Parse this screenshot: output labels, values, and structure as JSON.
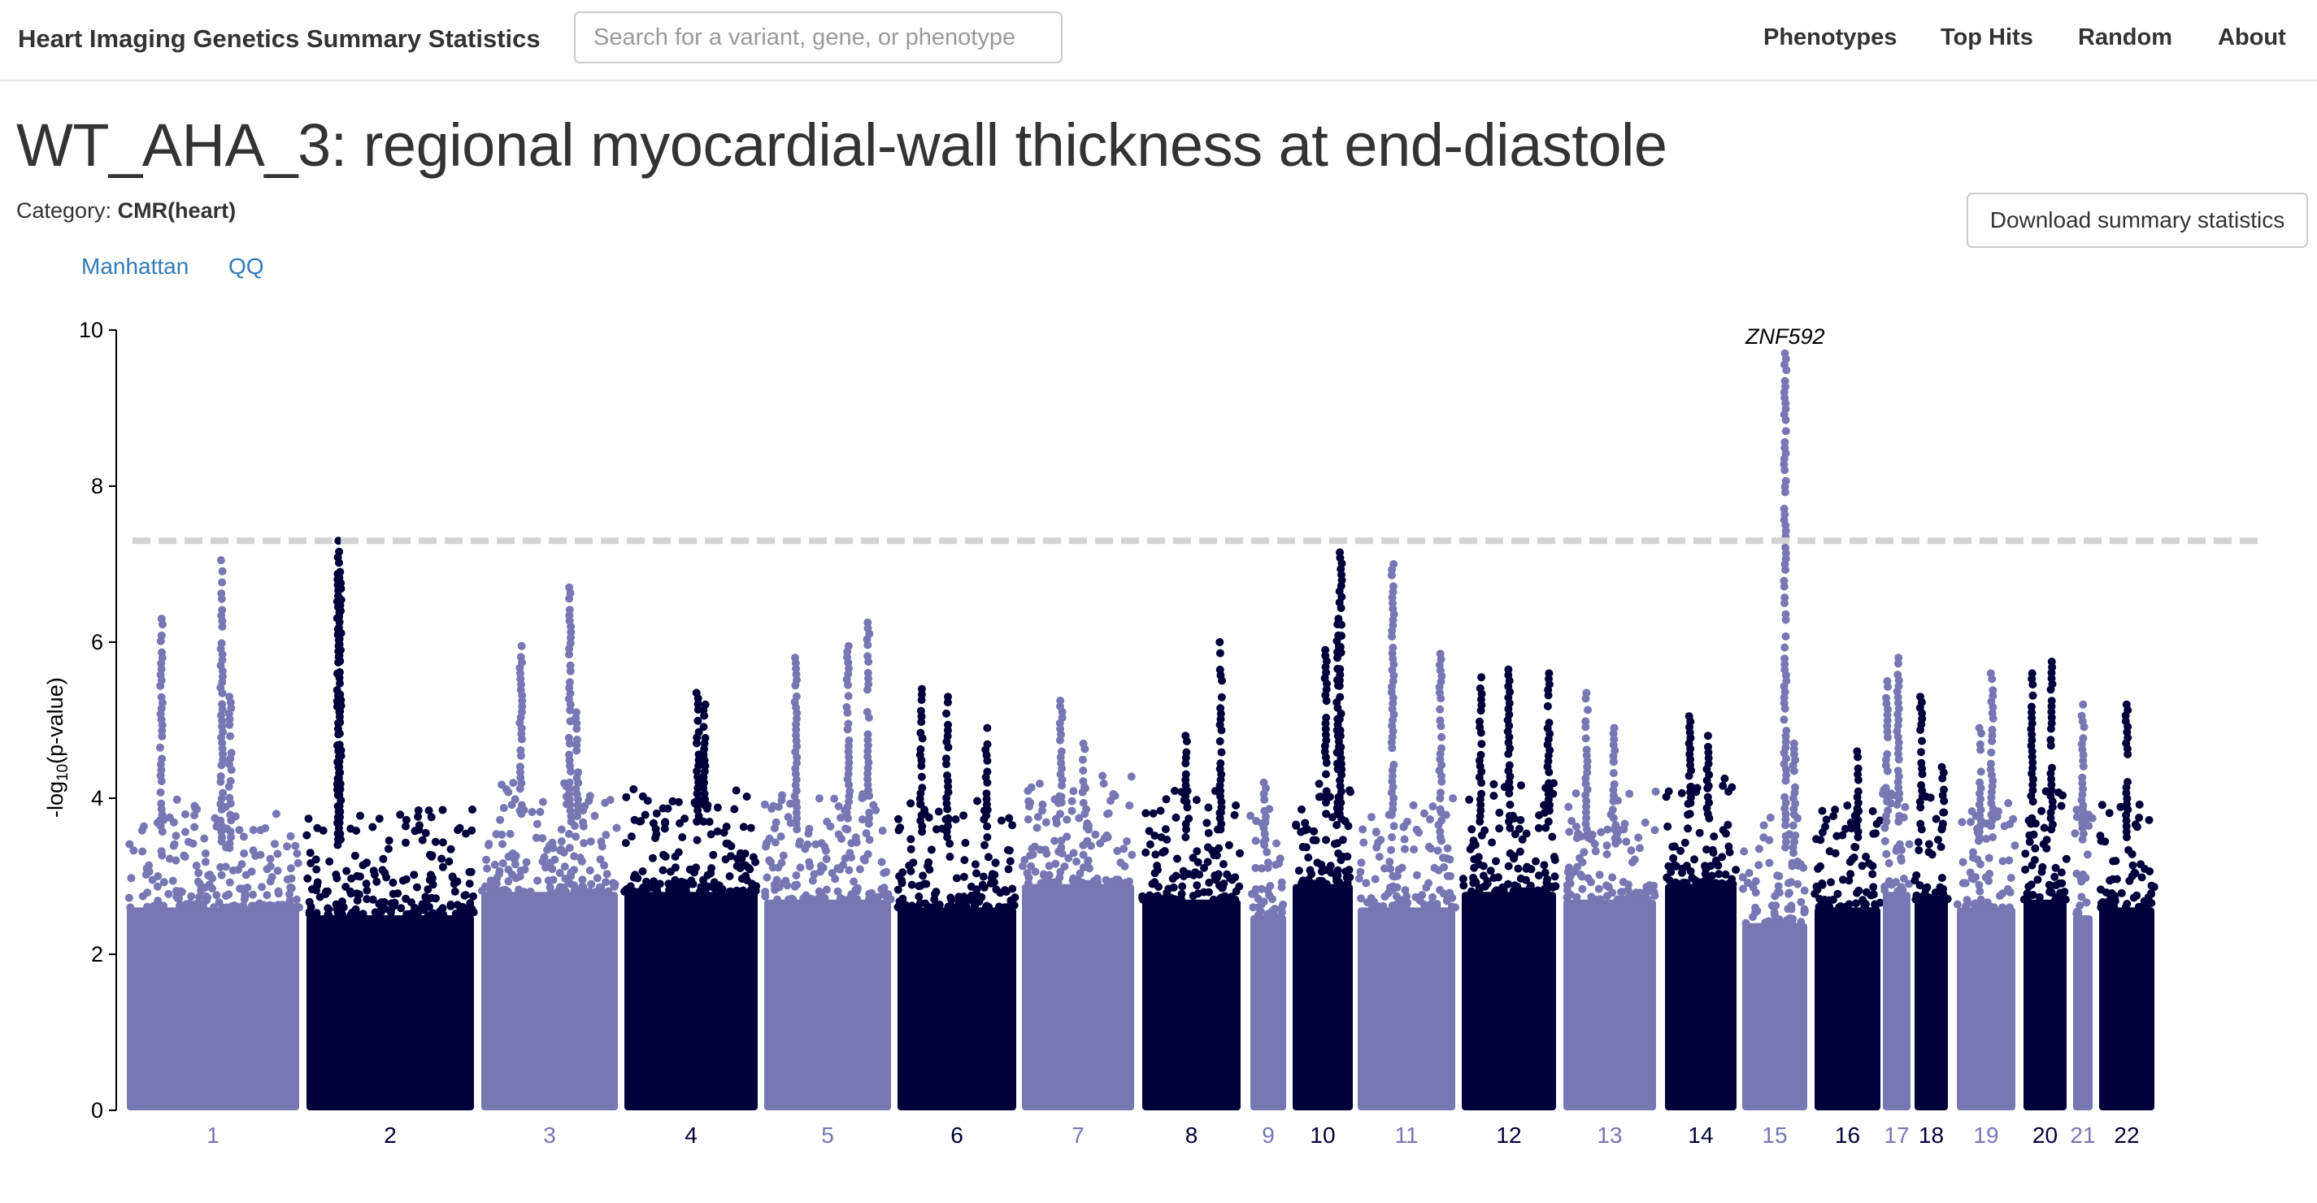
{
  "navbar": {
    "brand": "Heart Imaging Genetics Summary Statistics",
    "search_placeholder": "Search for a variant, gene, or phenotype",
    "links": [
      "Phenotypes",
      "Top Hits",
      "Random",
      "About"
    ]
  },
  "page": {
    "title": "WT_AHA_3: regional myocardial-wall thickness at end-diastole",
    "category_label": "Category:",
    "category_value": "CMR(heart)",
    "download_label": "Download summary statistics",
    "tabs": [
      "Manhattan",
      "QQ"
    ]
  },
  "colors": {
    "light": "#7777b4",
    "dark": "#00003b",
    "threshold": "#d3d3d3"
  },
  "chart_data": {
    "type": "scatter",
    "ylabel_main": "-log",
    "ylabel_sub": "10",
    "ylabel_rest": "(p-value)",
    "ylim": [
      0,
      10
    ],
    "yticks": [
      0,
      2,
      4,
      6,
      8,
      10
    ],
    "significance_threshold": 7.3,
    "annotations": [
      {
        "text": "ZNF592",
        "chromosome": "15",
        "value": 9.7
      }
    ],
    "chromosomes": [
      {
        "name": "1",
        "color": "light",
        "base": 3.5,
        "peaks": [
          [
            0.2,
            6.3
          ],
          [
            0.55,
            7.05
          ],
          [
            0.6,
            5.3
          ]
        ]
      },
      {
        "name": "2",
        "color": "dark",
        "base": 3.4,
        "peaks": [
          [
            0.19,
            7.3
          ],
          [
            0.2,
            6.9
          ]
        ]
      },
      {
        "name": "3",
        "color": "light",
        "base": 3.7,
        "peaks": [
          [
            0.29,
            5.95
          ],
          [
            0.65,
            6.7
          ],
          [
            0.7,
            5.1
          ]
        ]
      },
      {
        "name": "4",
        "color": "dark",
        "base": 3.7,
        "peaks": [
          [
            0.55,
            5.35
          ],
          [
            0.6,
            5.2
          ]
        ]
      },
      {
        "name": "5",
        "color": "light",
        "base": 3.6,
        "peaks": [
          [
            0.25,
            5.8
          ],
          [
            0.66,
            5.95
          ],
          [
            0.82,
            6.25
          ]
        ]
      },
      {
        "name": "6",
        "color": "dark",
        "base": 3.5,
        "peaks": [
          [
            0.2,
            5.4
          ],
          [
            0.42,
            5.3
          ],
          [
            0.75,
            4.9
          ]
        ]
      },
      {
        "name": "7",
        "color": "light",
        "base": 3.8,
        "peaks": [
          [
            0.35,
            5.25
          ],
          [
            0.55,
            4.7
          ]
        ]
      },
      {
        "name": "8",
        "color": "dark",
        "base": 3.6,
        "peaks": [
          [
            0.8,
            6.0
          ],
          [
            0.45,
            4.8
          ]
        ]
      },
      {
        "name": "9",
        "color": "light",
        "base": 3.4,
        "peaks": [
          [
            0.4,
            4.2
          ]
        ]
      },
      {
        "name": "10",
        "color": "dark",
        "base": 3.8,
        "peaks": [
          [
            0.55,
            5.9
          ],
          [
            0.75,
            6.3
          ],
          [
            0.8,
            7.15
          ]
        ]
      },
      {
        "name": "11",
        "color": "light",
        "base": 3.5,
        "peaks": [
          [
            0.36,
            7.0
          ],
          [
            0.85,
            5.85
          ]
        ]
      },
      {
        "name": "12",
        "color": "dark",
        "base": 3.7,
        "peaks": [
          [
            0.2,
            5.55
          ],
          [
            0.5,
            5.65
          ],
          [
            0.92,
            5.6
          ]
        ]
      },
      {
        "name": "13",
        "color": "light",
        "base": 3.6,
        "peaks": [
          [
            0.25,
            5.35
          ],
          [
            0.55,
            4.9
          ]
        ]
      },
      {
        "name": "14",
        "color": "dark",
        "base": 3.8,
        "peaks": [
          [
            0.35,
            5.05
          ],
          [
            0.6,
            4.8
          ]
        ]
      },
      {
        "name": "15",
        "color": "light",
        "base": 3.3,
        "peaks": [
          [
            0.66,
            9.7
          ],
          [
            0.8,
            4.7
          ]
        ]
      },
      {
        "name": "16",
        "color": "dark",
        "base": 3.5,
        "peaks": [
          [
            0.65,
            4.6
          ]
        ]
      },
      {
        "name": "17",
        "color": "light",
        "base": 3.7,
        "peaks": [
          [
            0.15,
            5.5
          ],
          [
            0.55,
            5.8
          ]
        ]
      },
      {
        "name": "18",
        "color": "dark",
        "base": 3.6,
        "peaks": [
          [
            0.2,
            5.3
          ],
          [
            0.85,
            4.4
          ]
        ]
      },
      {
        "name": "19",
        "color": "light",
        "base": 3.5,
        "peaks": [
          [
            0.4,
            4.9
          ],
          [
            0.6,
            5.6
          ]
        ]
      },
      {
        "name": "20",
        "color": "dark",
        "base": 3.6,
        "peaks": [
          [
            0.2,
            5.6
          ],
          [
            0.65,
            5.75
          ]
        ]
      },
      {
        "name": "21",
        "color": "light",
        "base": 3.4,
        "peaks": [
          [
            0.5,
            5.2
          ]
        ]
      },
      {
        "name": "22",
        "color": "dark",
        "base": 3.5,
        "peaks": [
          [
            0.5,
            5.2
          ]
        ]
      }
    ]
  }
}
